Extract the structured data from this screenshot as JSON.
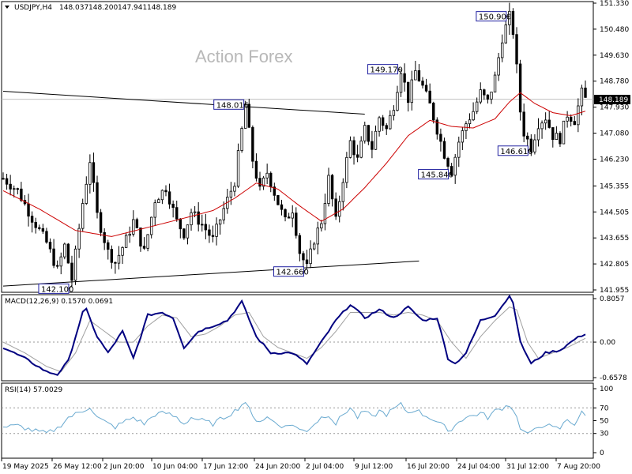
{
  "chart_data": [
    {
      "type": "candlestick",
      "symbol_label": "USDJPY,H4",
      "ohlc_text": [
        "148.037",
        "148.200",
        "147.941",
        "148.189"
      ],
      "watermark": "Action Forex",
      "current_price_label": "148.189",
      "y_ticks": [
        "151.330",
        "150.480",
        "149.630",
        "148.780",
        "147.930",
        "147.080",
        "146.230",
        "145.355",
        "144.505",
        "143.655",
        "142.805",
        "141.955"
      ],
      "ylim": [
        141.955,
        151.33
      ],
      "x_ticks": [
        "19 May 2025",
        "26 May 12:00",
        "2 Jun 20:00",
        "10 Jun 04:00",
        "17 Jun 12:00",
        "24 Jun 20:00",
        "2 Jul 04:00",
        "9 Jul 12:00",
        "16 Jul 20:00",
        "24 Jul 04:00",
        "31 Jul 12:00",
        "7 Aug 20:00"
      ],
      "price_path": [
        [
          0,
          145.6
        ],
        [
          4,
          145.2
        ],
        [
          8,
          144.3
        ],
        [
          12,
          143.5
        ],
        [
          15,
          142.6
        ],
        [
          17,
          143.4
        ],
        [
          19,
          142.3
        ],
        [
          22,
          144.8
        ],
        [
          24,
          146.2
        ],
        [
          26,
          144.4
        ],
        [
          29,
          143.2
        ],
        [
          31,
          142.85
        ],
        [
          34,
          143.6
        ],
        [
          36,
          144.2
        ],
        [
          39,
          143.2
        ],
        [
          42,
          144.9
        ],
        [
          45,
          145.3
        ],
        [
          48,
          144.2
        ],
        [
          50,
          143.8
        ],
        [
          52,
          144.5
        ],
        [
          55,
          144.1
        ],
        [
          58,
          143.6
        ],
        [
          61,
          144.6
        ],
        [
          64,
          145.5
        ],
        [
          67,
          148.016
        ],
        [
          69,
          146.2
        ],
        [
          71,
          145.2
        ],
        [
          73,
          145.8
        ],
        [
          76,
          144.8
        ],
        [
          78,
          144.2
        ],
        [
          80,
          144.6
        ],
        [
          82,
          143.2
        ],
        [
          84,
          142.68
        ],
        [
          86,
          143.6
        ],
        [
          88,
          144.2
        ],
        [
          90,
          145.6
        ],
        [
          92,
          144.2
        ],
        [
          94,
          145.6
        ],
        [
          96,
          146.8
        ],
        [
          98,
          146.2
        ],
        [
          100,
          147.2
        ],
        [
          102,
          146.6
        ],
        [
          104,
          147.6
        ],
        [
          106,
          147.2
        ],
        [
          108,
          148.0
        ],
        [
          110,
          149.17
        ],
        [
          112,
          148.2
        ],
        [
          114,
          149.1
        ],
        [
          116,
          148.6
        ],
        [
          118,
          148.0
        ],
        [
          120,
          147.2
        ],
        [
          122,
          146.4
        ],
        [
          124,
          145.84
        ],
        [
          126,
          146.8
        ],
        [
          128,
          147.4
        ],
        [
          130,
          147.8
        ],
        [
          132,
          148.4
        ],
        [
          134,
          148.1
        ],
        [
          136,
          148.9
        ],
        [
          138,
          150.2
        ],
        [
          140,
          150.9
        ],
        [
          141,
          150.4
        ],
        [
          142,
          149.2
        ],
        [
          143,
          147.8
        ],
        [
          144,
          147.1
        ],
        [
          146,
          146.61
        ],
        [
          148,
          147.4
        ],
        [
          150,
          147.6
        ],
        [
          152,
          147.0
        ],
        [
          154,
          146.9
        ],
        [
          156,
          147.7
        ],
        [
          158,
          147.5
        ],
        [
          160,
          148.4
        ],
        [
          161,
          148.189
        ]
      ],
      "ma_path": [
        [
          0,
          145.2
        ],
        [
          10,
          144.6
        ],
        [
          20,
          143.9
        ],
        [
          30,
          143.7
        ],
        [
          40,
          144.0
        ],
        [
          50,
          144.3
        ],
        [
          58,
          144.55
        ],
        [
          64,
          144.95
        ],
        [
          70,
          145.45
        ],
        [
          76,
          145.25
        ],
        [
          82,
          144.7
        ],
        [
          88,
          144.2
        ],
        [
          94,
          144.6
        ],
        [
          100,
          145.3
        ],
        [
          106,
          146.1
        ],
        [
          112,
          147.0
        ],
        [
          118,
          147.5
        ],
        [
          124,
          147.3
        ],
        [
          130,
          147.25
        ],
        [
          136,
          147.55
        ],
        [
          140,
          148.1
        ],
        [
          143,
          148.4
        ],
        [
          147,
          148.05
        ],
        [
          152,
          147.75
        ],
        [
          157,
          147.65
        ],
        [
          161,
          147.8
        ]
      ],
      "trendlines": [
        {
          "from": [
            0,
            148.45
          ],
          "to": [
            100,
            147.7
          ]
        },
        {
          "from": [
            0,
            142.08
          ],
          "to": [
            115,
            142.9
          ]
        }
      ],
      "horizontal_line": 148.189,
      "annotations": [
        {
          "text": "150.900",
          "bar": 140,
          "price": 150.9
        },
        {
          "text": "149.170",
          "bar": 110,
          "price": 149.17
        },
        {
          "text": "148.016",
          "bar": 67,
          "price": 148.016
        },
        {
          "text": "145.840",
          "bar": 124,
          "price": 145.84
        },
        {
          "text": "146.610",
          "bar": 146,
          "price": 146.61
        },
        {
          "text": "142.660",
          "bar": 84,
          "price": 142.66
        },
        {
          "text": "142.100",
          "bar": 19,
          "price": 142.1
        }
      ],
      "colors": {
        "up": "#000000",
        "down": "#000000",
        "ma": "#cc0000",
        "trend": "#000000",
        "annotation_border": "#2020a0"
      }
    },
    {
      "type": "line",
      "label": "MACD(12,26,9) 0.1570 0.0691",
      "y_ticks": [
        "0.8057",
        "0.00",
        "-0.6578"
      ],
      "ylim": [
        -0.6578,
        0.8057
      ],
      "macd_path": [
        [
          0,
          -0.1
        ],
        [
          6,
          -0.3
        ],
        [
          12,
          -0.55
        ],
        [
          15,
          -0.6
        ],
        [
          18,
          -0.35
        ],
        [
          22,
          0.55
        ],
        [
          23,
          0.6
        ],
        [
          26,
          0.1
        ],
        [
          29,
          -0.2
        ],
        [
          33,
          0.2
        ],
        [
          36,
          -0.3
        ],
        [
          40,
          0.5
        ],
        [
          44,
          0.55
        ],
        [
          47,
          0.45
        ],
        [
          50,
          -0.1
        ],
        [
          54,
          0.2
        ],
        [
          58,
          0.3
        ],
        [
          62,
          0.4
        ],
        [
          66,
          0.75
        ],
        [
          70,
          0.1
        ],
        [
          74,
          -0.2
        ],
        [
          80,
          -0.2
        ],
        [
          84,
          -0.4
        ],
        [
          88,
          0.0
        ],
        [
          92,
          0.4
        ],
        [
          96,
          0.7
        ],
        [
          100,
          0.45
        ],
        [
          104,
          0.6
        ],
        [
          108,
          0.45
        ],
        [
          112,
          0.65
        ],
        [
          116,
          0.4
        ],
        [
          120,
          0.45
        ],
        [
          123,
          -0.3
        ],
        [
          125,
          -0.4
        ],
        [
          128,
          -0.2
        ],
        [
          132,
          0.4
        ],
        [
          136,
          0.5
        ],
        [
          140,
          0.85
        ],
        [
          141,
          0.75
        ],
        [
          143,
          0.0
        ],
        [
          146,
          -0.4
        ],
        [
          150,
          -0.2
        ],
        [
          154,
          -0.15
        ],
        [
          158,
          0.05
        ],
        [
          161,
          0.157
        ]
      ],
      "signal_path": [
        [
          0,
          0.0
        ],
        [
          6,
          -0.2
        ],
        [
          12,
          -0.45
        ],
        [
          16,
          -0.55
        ],
        [
          20,
          -0.2
        ],
        [
          24,
          0.4
        ],
        [
          28,
          0.2
        ],
        [
          32,
          0.0
        ],
        [
          36,
          0.0
        ],
        [
          40,
          0.3
        ],
        [
          44,
          0.5
        ],
        [
          48,
          0.45
        ],
        [
          52,
          0.1
        ],
        [
          56,
          0.15
        ],
        [
          60,
          0.3
        ],
        [
          64,
          0.5
        ],
        [
          68,
          0.55
        ],
        [
          72,
          0.1
        ],
        [
          76,
          -0.1
        ],
        [
          80,
          -0.2
        ],
        [
          84,
          -0.3
        ],
        [
          88,
          -0.1
        ],
        [
          92,
          0.2
        ],
        [
          96,
          0.55
        ],
        [
          100,
          0.55
        ],
        [
          104,
          0.55
        ],
        [
          108,
          0.5
        ],
        [
          112,
          0.55
        ],
        [
          116,
          0.5
        ],
        [
          120,
          0.4
        ],
        [
          124,
          0.0
        ],
        [
          128,
          -0.3
        ],
        [
          132,
          0.1
        ],
        [
          136,
          0.4
        ],
        [
          140,
          0.65
        ],
        [
          142,
          0.6
        ],
        [
          145,
          0.0
        ],
        [
          148,
          -0.3
        ],
        [
          152,
          -0.2
        ],
        [
          156,
          -0.1
        ],
        [
          161,
          0.069
        ]
      ],
      "colors": {
        "macd": "#000080",
        "signal": "#a0a0a0"
      }
    },
    {
      "type": "line",
      "label": "RSI(14) 57.0029",
      "y_ticks": [
        "100",
        "70",
        "50",
        "30",
        "0"
      ],
      "ylim": [
        0,
        100
      ],
      "rsi_path": [
        [
          0,
          40
        ],
        [
          4,
          42
        ],
        [
          8,
          35
        ],
        [
          12,
          30
        ],
        [
          15,
          38
        ],
        [
          18,
          55
        ],
        [
          22,
          65
        ],
        [
          24,
          72
        ],
        [
          26,
          55
        ],
        [
          29,
          45
        ],
        [
          31,
          40
        ],
        [
          34,
          50
        ],
        [
          36,
          55
        ],
        [
          39,
          45
        ],
        [
          42,
          60
        ],
        [
          45,
          62
        ],
        [
          48,
          55
        ],
        [
          50,
          45
        ],
        [
          52,
          55
        ],
        [
          55,
          50
        ],
        [
          58,
          45
        ],
        [
          61,
          55
        ],
        [
          64,
          65
        ],
        [
          67,
          80
        ],
        [
          69,
          55
        ],
        [
          71,
          50
        ],
        [
          73,
          55
        ],
        [
          76,
          45
        ],
        [
          78,
          40
        ],
        [
          80,
          45
        ],
        [
          82,
          35
        ],
        [
          84,
          35
        ],
        [
          86,
          45
        ],
        [
          88,
          55
        ],
        [
          90,
          60
        ],
        [
          92,
          45
        ],
        [
          94,
          60
        ],
        [
          96,
          70
        ],
        [
          98,
          55
        ],
        [
          100,
          65
        ],
        [
          102,
          55
        ],
        [
          104,
          65
        ],
        [
          106,
          60
        ],
        [
          108,
          68
        ],
        [
          110,
          75
        ],
        [
          112,
          62
        ],
        [
          114,
          68
        ],
        [
          116,
          60
        ],
        [
          118,
          55
        ],
        [
          120,
          48
        ],
        [
          122,
          40
        ],
        [
          124,
          35
        ],
        [
          126,
          50
        ],
        [
          128,
          55
        ],
        [
          130,
          58
        ],
        [
          132,
          62
        ],
        [
          134,
          55
        ],
        [
          136,
          65
        ],
        [
          138,
          70
        ],
        [
          140,
          75
        ],
        [
          141,
          68
        ],
        [
          142,
          55
        ],
        [
          143,
          40
        ],
        [
          144,
          32
        ],
        [
          146,
          30
        ],
        [
          148,
          40
        ],
        [
          150,
          45
        ],
        [
          152,
          38
        ],
        [
          154,
          38
        ],
        [
          156,
          52
        ],
        [
          158,
          45
        ],
        [
          160,
          62
        ],
        [
          161,
          57
        ]
      ],
      "colors": {
        "rsi": "#6aaad0"
      }
    }
  ]
}
